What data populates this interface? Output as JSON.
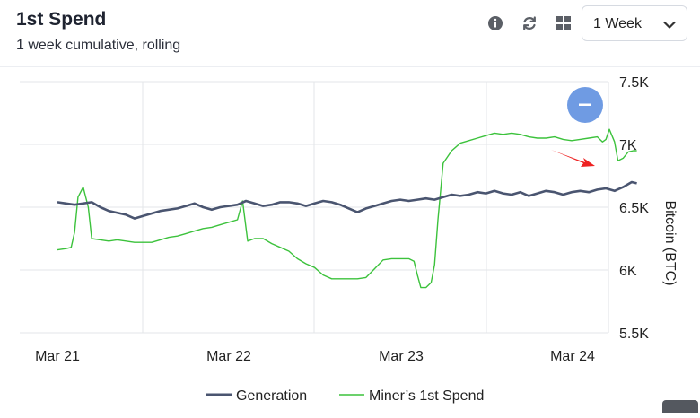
{
  "header": {
    "title": "1st Spend",
    "subtitle": "1 week cumulative, rolling"
  },
  "toolbar": {
    "icons": [
      "info-icon",
      "refresh-icon",
      "grid-icon"
    ],
    "period_value": "1 Week"
  },
  "colors": {
    "generation": "#4a5570",
    "miners_first_spend": "#3cc23c",
    "zoom_button": "#6f9be3",
    "annotation_arrow": "#ee2222"
  },
  "chart_data": {
    "type": "line",
    "x_ticks": [
      "Mar 21",
      "Mar 22",
      "Mar 23",
      "Mar 24"
    ],
    "y_ticks": [
      "7.5K",
      "7K",
      "6.5K",
      "6K",
      "5.5K"
    ],
    "ylabel": "Bitcoin (BTC)",
    "ylim": [
      5500,
      7500
    ],
    "y_axis_side": "right",
    "grid": true,
    "legend_position": "bottom",
    "series": [
      {
        "name": "Generation",
        "color": "#4a5570",
        "points": [
          [
            0,
            6540
          ],
          [
            0.05,
            6530
          ],
          [
            0.1,
            6520
          ],
          [
            0.2,
            6540
          ],
          [
            0.25,
            6500
          ],
          [
            0.3,
            6470
          ],
          [
            0.4,
            6440
          ],
          [
            0.45,
            6410
          ],
          [
            0.5,
            6430
          ],
          [
            0.55,
            6450
          ],
          [
            0.6,
            6470
          ],
          [
            0.7,
            6490
          ],
          [
            0.75,
            6510
          ],
          [
            0.8,
            6530
          ],
          [
            0.85,
            6500
          ],
          [
            0.9,
            6480
          ],
          [
            0.95,
            6500
          ],
          [
            1.0,
            6510
          ],
          [
            1.05,
            6520
          ],
          [
            1.1,
            6550
          ],
          [
            1.15,
            6530
          ],
          [
            1.2,
            6510
          ],
          [
            1.25,
            6520
          ],
          [
            1.3,
            6540
          ],
          [
            1.35,
            6540
          ],
          [
            1.4,
            6530
          ],
          [
            1.45,
            6510
          ],
          [
            1.5,
            6530
          ],
          [
            1.55,
            6550
          ],
          [
            1.6,
            6540
          ],
          [
            1.65,
            6520
          ],
          [
            1.7,
            6490
          ],
          [
            1.75,
            6460
          ],
          [
            1.8,
            6490
          ],
          [
            1.85,
            6510
          ],
          [
            1.9,
            6530
          ],
          [
            1.95,
            6550
          ],
          [
            2.0,
            6560
          ],
          [
            2.05,
            6550
          ],
          [
            2.1,
            6560
          ],
          [
            2.15,
            6570
          ],
          [
            2.2,
            6560
          ],
          [
            2.25,
            6580
          ],
          [
            2.3,
            6600
          ],
          [
            2.35,
            6590
          ],
          [
            2.4,
            6600
          ],
          [
            2.45,
            6620
          ],
          [
            2.5,
            6610
          ],
          [
            2.55,
            6630
          ],
          [
            2.6,
            6610
          ],
          [
            2.65,
            6600
          ],
          [
            2.7,
            6620
          ],
          [
            2.75,
            6590
          ],
          [
            2.8,
            6610
          ],
          [
            2.85,
            6630
          ],
          [
            2.9,
            6620
          ],
          [
            2.95,
            6600
          ],
          [
            3.0,
            6620
          ],
          [
            3.05,
            6630
          ],
          [
            3.1,
            6620
          ],
          [
            3.15,
            6640
          ],
          [
            3.2,
            6650
          ],
          [
            3.25,
            6630
          ],
          [
            3.3,
            6660
          ],
          [
            3.35,
            6700
          ],
          [
            3.38,
            6690
          ]
        ]
      },
      {
        "name": "Miner’s 1st Spend",
        "color": "#3cc23c",
        "points": [
          [
            0,
            6160
          ],
          [
            0.05,
            6170
          ],
          [
            0.08,
            6180
          ],
          [
            0.1,
            6300
          ],
          [
            0.12,
            6580
          ],
          [
            0.15,
            6660
          ],
          [
            0.18,
            6500
          ],
          [
            0.2,
            6250
          ],
          [
            0.25,
            6240
          ],
          [
            0.3,
            6230
          ],
          [
            0.35,
            6240
          ],
          [
            0.4,
            6230
          ],
          [
            0.45,
            6220
          ],
          [
            0.5,
            6220
          ],
          [
            0.55,
            6220
          ],
          [
            0.6,
            6240
          ],
          [
            0.65,
            6260
          ],
          [
            0.7,
            6270
          ],
          [
            0.75,
            6290
          ],
          [
            0.8,
            6310
          ],
          [
            0.85,
            6330
          ],
          [
            0.9,
            6340
          ],
          [
            0.95,
            6360
          ],
          [
            1.0,
            6380
          ],
          [
            1.05,
            6400
          ],
          [
            1.08,
            6550
          ],
          [
            1.11,
            6230
          ],
          [
            1.15,
            6250
          ],
          [
            1.2,
            6250
          ],
          [
            1.25,
            6210
          ],
          [
            1.3,
            6180
          ],
          [
            1.35,
            6150
          ],
          [
            1.4,
            6090
          ],
          [
            1.45,
            6050
          ],
          [
            1.5,
            6020
          ],
          [
            1.55,
            5960
          ],
          [
            1.6,
            5930
          ],
          [
            1.65,
            5930
          ],
          [
            1.7,
            5930
          ],
          [
            1.75,
            5930
          ],
          [
            1.8,
            5940
          ],
          [
            1.85,
            6010
          ],
          [
            1.9,
            6080
          ],
          [
            1.95,
            6090
          ],
          [
            2.0,
            6090
          ],
          [
            2.05,
            6090
          ],
          [
            2.08,
            6070
          ],
          [
            2.1,
            5960
          ],
          [
            2.12,
            5860
          ],
          [
            2.15,
            5860
          ],
          [
            2.18,
            5900
          ],
          [
            2.2,
            6040
          ],
          [
            2.22,
            6400
          ],
          [
            2.25,
            6850
          ],
          [
            2.3,
            6950
          ],
          [
            2.35,
            7010
          ],
          [
            2.4,
            7030
          ],
          [
            2.45,
            7050
          ],
          [
            2.5,
            7070
          ],
          [
            2.55,
            7090
          ],
          [
            2.6,
            7080
          ],
          [
            2.65,
            7090
          ],
          [
            2.7,
            7080
          ],
          [
            2.75,
            7060
          ],
          [
            2.8,
            7050
          ],
          [
            2.85,
            7050
          ],
          [
            2.9,
            7060
          ],
          [
            2.95,
            7040
          ],
          [
            3.0,
            7030
          ],
          [
            3.05,
            7040
          ],
          [
            3.1,
            7050
          ],
          [
            3.15,
            7060
          ],
          [
            3.18,
            7020
          ],
          [
            3.2,
            7040
          ],
          [
            3.22,
            7120
          ],
          [
            3.25,
            7020
          ],
          [
            3.27,
            6870
          ],
          [
            3.3,
            6890
          ],
          [
            3.33,
            6940
          ],
          [
            3.36,
            6950
          ],
          [
            3.38,
            6950
          ]
        ]
      }
    ]
  }
}
